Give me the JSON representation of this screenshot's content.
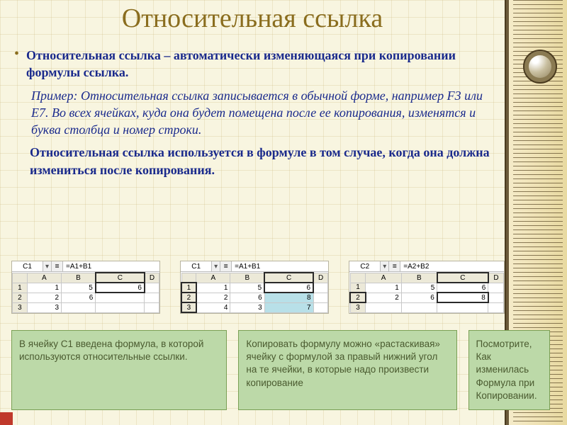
{
  "title": "Относительная ссылка",
  "paragraphs": {
    "p1": "Относительная ссылка – автоматически изменяющаяся при копировании формулы ссылка.",
    "p2": "Пример: Относительная ссылка записывается в обычной форме, например F3 или E7. Во всех ячейках, куда она будет помещена после ее копирования, изменятся и буква столбца и номер строки.",
    "p3": "Относительная ссылка используется в формуле в том случае, когда она должна измениться после копирования."
  },
  "colors": {
    "title": "#8a6d1e",
    "body": "#1a2a8c",
    "caption_bg": "#bcd9a8",
    "caption_border": "#7aa055",
    "caption_text": "#4a5a2f",
    "highlight_cell": "#b8e0e8"
  },
  "screenshots": {
    "s1": {
      "active_cell": "C1",
      "formula": "=A1+B1",
      "columns": [
        "A",
        "B",
        "C",
        "D"
      ],
      "rows": [
        {
          "n": "1",
          "A": "1",
          "B": "5",
          "C": "6",
          "D": ""
        },
        {
          "n": "2",
          "A": "2",
          "B": "6",
          "C": "",
          "D": ""
        },
        {
          "n": "3",
          "A": "3",
          "B": "",
          "C": "",
          "D": ""
        }
      ],
      "selected_column": "C",
      "selected_cell": "C1"
    },
    "s2": {
      "active_cell": "C1",
      "formula": "=A1+B1",
      "columns": [
        "A",
        "B",
        "C",
        "D"
      ],
      "rows": [
        {
          "n": "1",
          "A": "1",
          "B": "5",
          "C": "6",
          "D": ""
        },
        {
          "n": "2",
          "A": "2",
          "B": "6",
          "C": "8",
          "D": ""
        },
        {
          "n": "3",
          "A": "4",
          "B": "3",
          "C": "7",
          "D": ""
        }
      ],
      "highlight_range": [
        "C2",
        "C3"
      ],
      "selected_column": "C",
      "selected_cell": "C1"
    },
    "s3": {
      "active_cell": "C2",
      "formula": "=A2+B2",
      "columns": [
        "A",
        "B",
        "C",
        "D"
      ],
      "rows": [
        {
          "n": "1",
          "A": "1",
          "B": "5",
          "C": "6",
          "D": ""
        },
        {
          "n": "2",
          "A": "2",
          "B": "6",
          "C": "8",
          "D": ""
        },
        {
          "n": "3",
          "A": "",
          "B": "",
          "C": "",
          "D": ""
        }
      ],
      "selected_column": "C",
      "selected_cell": "C2"
    }
  },
  "captions": {
    "c1": "В ячейку C1 введена формула,\nв которой используются относительные\nссылки.",
    "c2": "Копировать формулу можно\n«растаскивая» ячейку с формулой\nза правый нижний угол на те ячейки,\nв которые надо произвести копирование",
    "c3": "Посмотрите,\nКак изменилась\nФормула при\nКопировании."
  }
}
